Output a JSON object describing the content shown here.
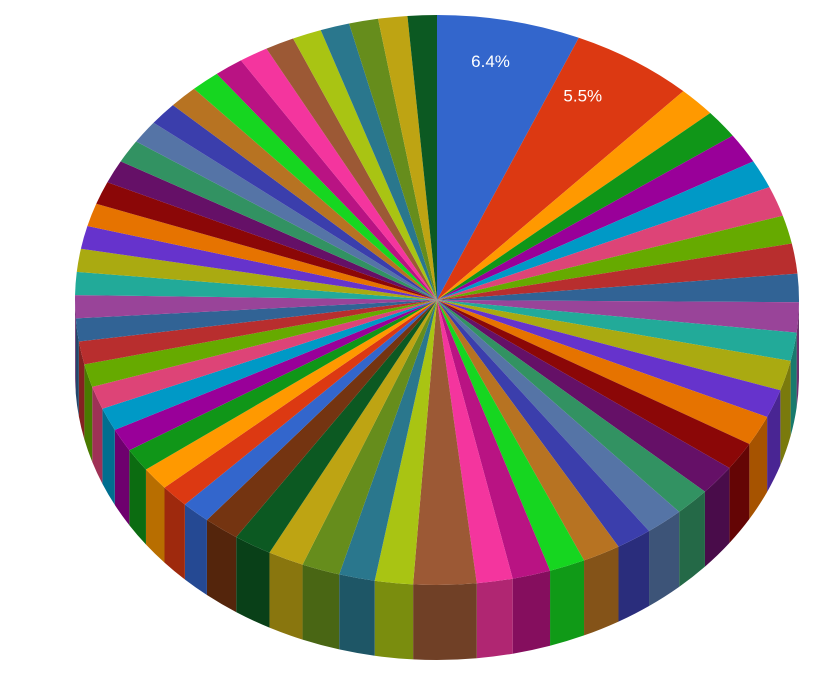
{
  "chart_data": {
    "type": "pie3d",
    "categories": [
      null,
      null,
      null,
      null,
      null,
      null,
      null,
      null,
      null,
      null,
      null,
      null,
      null,
      null,
      null,
      null,
      null,
      null,
      null,
      null,
      null,
      null,
      null,
      null,
      null,
      null,
      null,
      null,
      null,
      null,
      null,
      null,
      null,
      null,
      null,
      null,
      null,
      null,
      null,
      null,
      null,
      null,
      null,
      null,
      null,
      null,
      null,
      null,
      null,
      null,
      null,
      null,
      null,
      null,
      null,
      null,
      null,
      null,
      null,
      null,
      null
    ],
    "values": [
      6.4,
      5.5,
      1.7,
      1.6,
      1.7,
      1.6,
      1.7,
      1.6,
      1.7,
      1.6,
      1.7,
      1.6,
      1.7,
      1.6,
      1.7,
      1.6,
      1.7,
      1.6,
      1.7,
      1.6,
      1.7,
      1.6,
      1.7,
      1.6,
      2.8,
      1.7,
      1.6,
      1.7,
      1.6,
      1.7,
      1.6,
      1.3,
      1.3,
      1.3,
      1.3,
      1.3,
      1.3,
      1.3,
      1.3,
      1.3,
      1.3,
      1.3,
      1.3,
      1.3,
      1.3,
      1.3,
      1.3,
      1.3,
      1.3,
      1.3,
      1.3,
      1.3,
      1.3,
      1.3,
      1.3,
      1.3,
      1.3,
      1.3,
      1.3,
      1.3,
      1.3
    ],
    "value_labels": [
      "6.4%",
      "5.5%",
      null,
      null,
      null,
      null,
      null,
      null,
      null,
      null,
      null,
      null,
      null,
      null,
      null,
      null,
      null,
      null,
      null,
      null,
      null,
      null,
      null,
      null,
      null,
      null,
      null,
      null,
      null,
      null,
      null,
      null,
      null,
      null,
      null,
      null,
      null,
      null,
      null,
      null,
      null,
      null,
      null,
      null,
      null,
      null,
      null,
      null,
      null,
      null,
      null,
      null,
      null,
      null,
      null,
      null,
      null,
      null,
      null,
      null,
      null
    ],
    "colors": [
      "#3366cc",
      "#dc3912",
      "#ff9900",
      "#109618",
      "#990099",
      "#0099c6",
      "#dd4477",
      "#66aa00",
      "#b82e2e",
      "#316395",
      "#994499",
      "#22aa99",
      "#aaaa11",
      "#6633cc",
      "#e67300",
      "#8b0707",
      "#651067",
      "#329262",
      "#5574a6",
      "#3b3eac",
      "#b77322",
      "#16d620",
      "#b91383",
      "#f4359e",
      "#9c5935",
      "#a9c413",
      "#2a778d",
      "#668d1c",
      "#bea413",
      "#0c5922",
      "#743411",
      "#3366cc",
      "#dc3912",
      "#ff9900",
      "#109618",
      "#990099",
      "#0099c6",
      "#dd4477",
      "#66aa00",
      "#b82e2e",
      "#316395",
      "#994499",
      "#22aa99",
      "#aaaa11",
      "#6633cc",
      "#e67300",
      "#8b0707",
      "#651067",
      "#329262",
      "#5574a6",
      "#3b3eac",
      "#b77322",
      "#16d620",
      "#b91383",
      "#f4359e",
      "#9c5935",
      "#a9c413",
      "#2a778d",
      "#668d1c",
      "#bea413",
      "#0c5922"
    ]
  }
}
